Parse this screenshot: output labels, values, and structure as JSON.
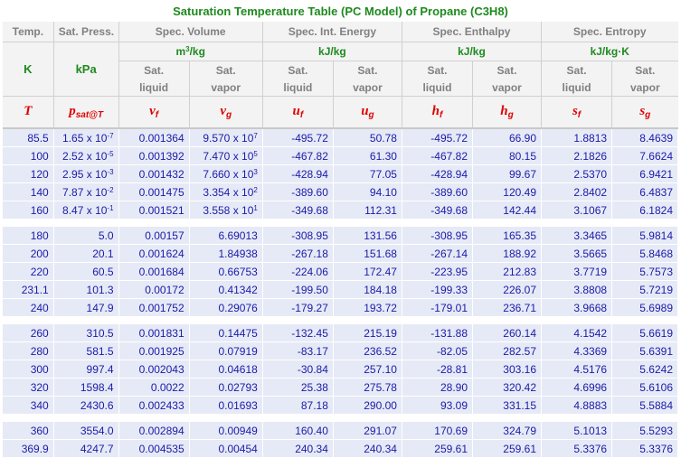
{
  "title": "Saturation Temperature Table (PC Model) of Propane (C3H8)",
  "headers": {
    "groups": [
      "Temp.",
      "Sat. Press.",
      "Spec. Volume",
      "Spec. Int. Energy",
      "Spec. Enthalpy",
      "Spec. Entropy"
    ],
    "units": [
      "K",
      "kPa",
      "m3/kg",
      "kJ/kg",
      "kJ/kg",
      "kJ/kg·K"
    ],
    "sub_top": [
      "Sat.",
      "Sat.",
      "Sat.",
      "Sat.",
      "Sat.",
      "Sat.",
      "Sat.",
      "Sat."
    ],
    "sub_bottom": [
      "liquid",
      "vapor",
      "liquid",
      "vapor",
      "liquid",
      "vapor",
      "liquid",
      "vapor"
    ],
    "symbols": [
      "T",
      "p",
      "v",
      "v",
      "u",
      "u",
      "h",
      "h",
      "s",
      "s"
    ],
    "symbol_subs": [
      "",
      "sat@T",
      "f",
      "g",
      "f",
      "g",
      "f",
      "g",
      "f",
      "g"
    ]
  },
  "groups": [
    [
      {
        "T": "85.5",
        "p": "1.65 x 10",
        "pe": "-7",
        "vf": "0.001364",
        "vg": "9.570 x 10",
        "vge": "7",
        "uf": "-495.72",
        "ug": "50.78",
        "hf": "-495.72",
        "hg": "66.90",
        "sf": "1.8813",
        "sg": "8.4639"
      },
      {
        "T": "100",
        "p": "2.52 x 10",
        "pe": "-5",
        "vf": "0.001392",
        "vg": "7.470 x 10",
        "vge": "5",
        "uf": "-467.82",
        "ug": "61.30",
        "hf": "-467.82",
        "hg": "80.15",
        "sf": "2.1826",
        "sg": "7.6624"
      },
      {
        "T": "120",
        "p": "2.95 x 10",
        "pe": "-3",
        "vf": "0.001432",
        "vg": "7.660 x 10",
        "vge": "3",
        "uf": "-428.94",
        "ug": "77.05",
        "hf": "-428.94",
        "hg": "99.67",
        "sf": "2.5370",
        "sg": "6.9421"
      },
      {
        "T": "140",
        "p": "7.87 x 10",
        "pe": "-2",
        "vf": "0.001475",
        "vg": "3.354 x 10",
        "vge": "2",
        "uf": "-389.60",
        "ug": "94.10",
        "hf": "-389.60",
        "hg": "120.49",
        "sf": "2.8402",
        "sg": "6.4837"
      },
      {
        "T": "160",
        "p": "8.47 x 10",
        "pe": "-1",
        "vf": "0.001521",
        "vg": "3.558 x 10",
        "vge": "1",
        "uf": "-349.68",
        "ug": "112.31",
        "hf": "-349.68",
        "hg": "142.44",
        "sf": "3.1067",
        "sg": "6.1824"
      }
    ],
    [
      {
        "T": "180",
        "p": "5.0",
        "vf": "0.00157",
        "vg": "6.69013",
        "uf": "-308.95",
        "ug": "131.56",
        "hf": "-308.95",
        "hg": "165.35",
        "sf": "3.3465",
        "sg": "5.9814"
      },
      {
        "T": "200",
        "p": "20.1",
        "vf": "0.001624",
        "vg": "1.84938",
        "uf": "-267.18",
        "ug": "151.68",
        "hf": "-267.14",
        "hg": "188.92",
        "sf": "3.5665",
        "sg": "5.8468"
      },
      {
        "T": "220",
        "p": "60.5",
        "vf": "0.001684",
        "vg": "0.66753",
        "uf": "-224.06",
        "ug": "172.47",
        "hf": "-223.95",
        "hg": "212.83",
        "sf": "3.7719",
        "sg": "5.7573"
      },
      {
        "T": "231.1",
        "p": "101.3",
        "vf": "0.00172",
        "vg": "0.41342",
        "uf": "-199.50",
        "ug": "184.18",
        "hf": "-199.33",
        "hg": "226.07",
        "sf": "3.8808",
        "sg": "5.7219"
      },
      {
        "T": "240",
        "p": "147.9",
        "vf": "0.001752",
        "vg": "0.29076",
        "uf": "-179.27",
        "ug": "193.72",
        "hf": "-179.01",
        "hg": "236.71",
        "sf": "3.9668",
        "sg": "5.6989"
      }
    ],
    [
      {
        "T": "260",
        "p": "310.5",
        "vf": "0.001831",
        "vg": "0.14475",
        "uf": "-132.45",
        "ug": "215.19",
        "hf": "-131.88",
        "hg": "260.14",
        "sf": "4.1542",
        "sg": "5.6619"
      },
      {
        "T": "280",
        "p": "581.5",
        "vf": "0.001925",
        "vg": "0.07919",
        "uf": "-83.17",
        "ug": "236.52",
        "hf": "-82.05",
        "hg": "282.57",
        "sf": "4.3369",
        "sg": "5.6391"
      },
      {
        "T": "300",
        "p": "997.4",
        "vf": "0.002043",
        "vg": "0.04618",
        "uf": "-30.84",
        "ug": "257.10",
        "hf": "-28.81",
        "hg": "303.16",
        "sf": "4.5176",
        "sg": "5.6242"
      },
      {
        "T": "320",
        "p": "1598.4",
        "vf": "0.0022",
        "vg": "0.02793",
        "uf": "25.38",
        "ug": "275.78",
        "hf": "28.90",
        "hg": "320.42",
        "sf": "4.6996",
        "sg": "5.6106"
      },
      {
        "T": "340",
        "p": "2430.6",
        "vf": "0.002433",
        "vg": "0.01693",
        "uf": "87.18",
        "ug": "290.00",
        "hf": "93.09",
        "hg": "331.15",
        "sf": "4.8883",
        "sg": "5.5884"
      }
    ],
    [
      {
        "T": "360",
        "p": "3554.0",
        "vf": "0.002894",
        "vg": "0.00949",
        "uf": "160.40",
        "ug": "291.07",
        "hf": "170.69",
        "hg": "324.79",
        "sf": "5.1013",
        "sg": "5.5293"
      },
      {
        "T": "369.9",
        "p": "4247.7",
        "vf": "0.004535",
        "vg": "0.00454",
        "uf": "240.34",
        "ug": "240.34",
        "hf": "259.61",
        "hg": "259.61",
        "sf": "5.3376",
        "sg": "5.3376"
      }
    ]
  ]
}
